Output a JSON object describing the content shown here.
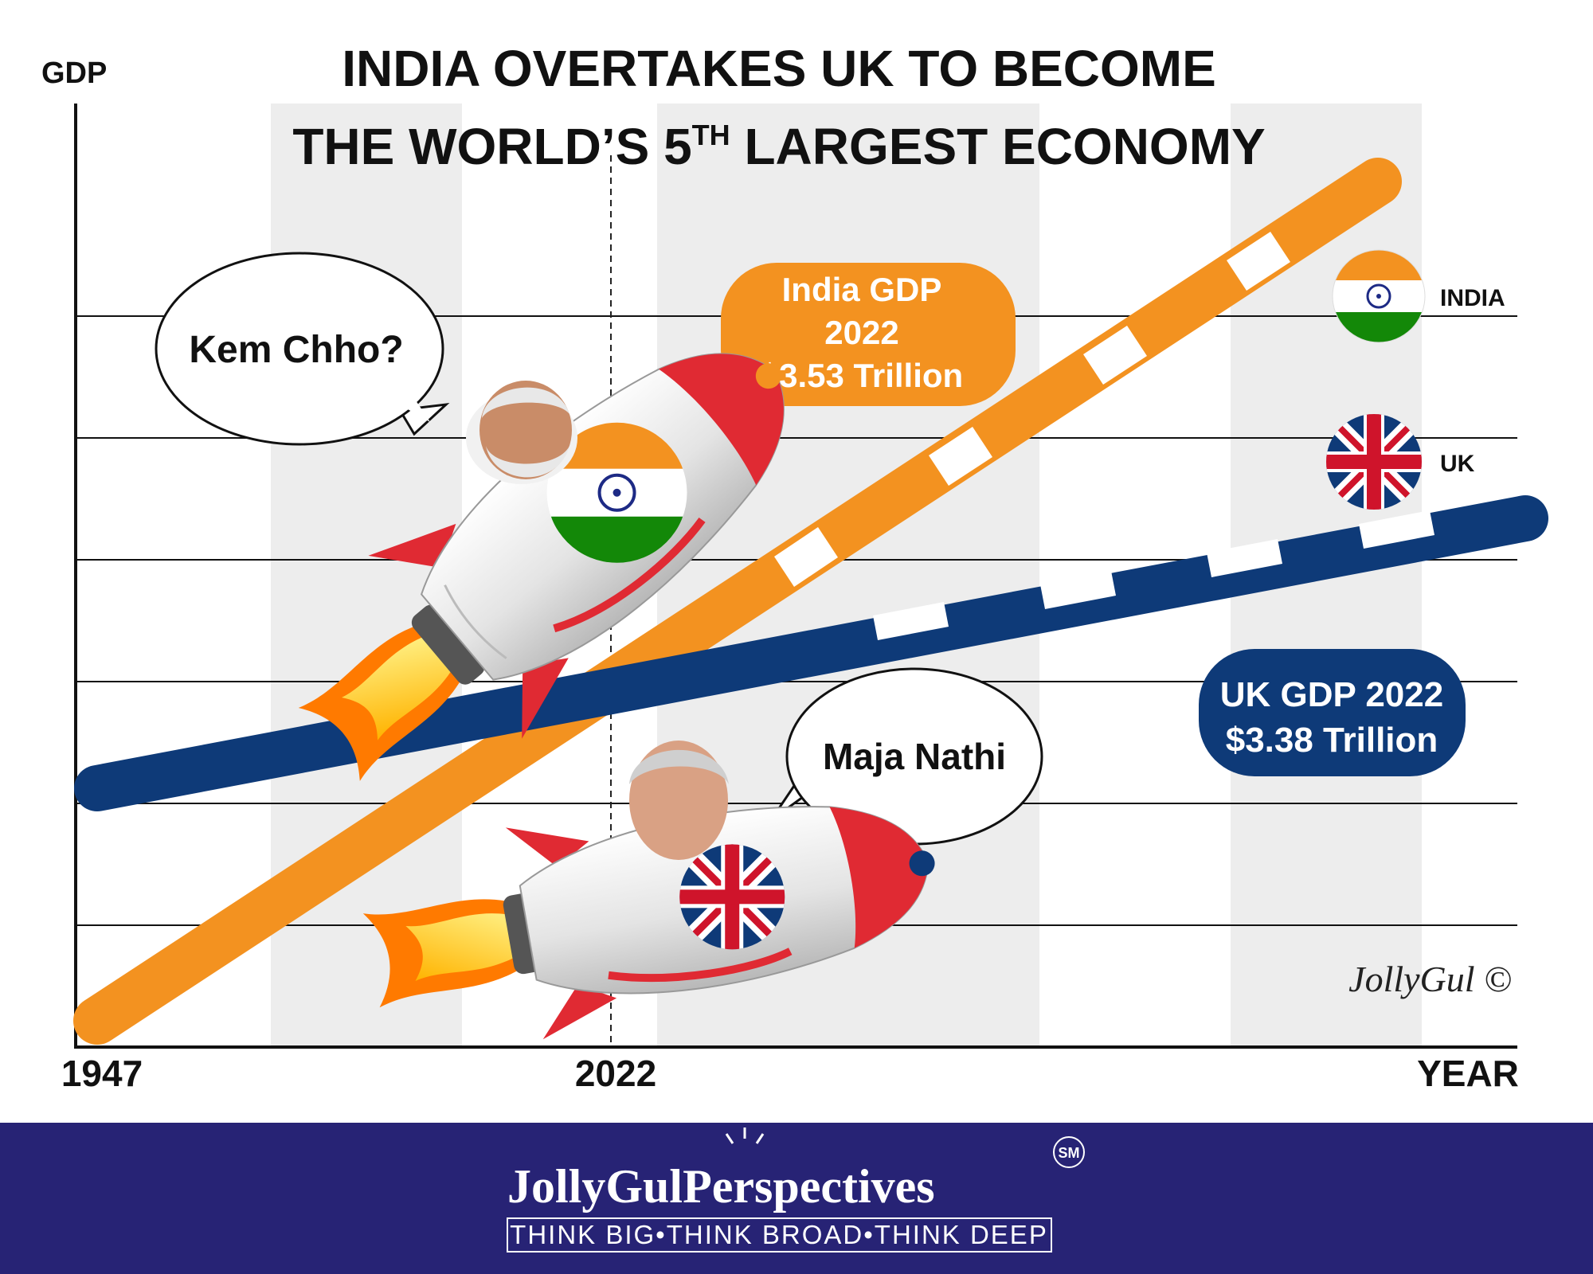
{
  "title": {
    "line1": "INDIA OVERTAKES UK TO BECOME",
    "line2_pre": "THE WORLD’S 5",
    "line2_sup": "TH",
    "line2_post": " LARGEST  ECONOMY"
  },
  "axes": {
    "y_label": "GDP",
    "x_label": "YEAR",
    "x_tick_start": "1947",
    "x_tick_mid": "2022"
  },
  "india_box": {
    "line1": "India GDP",
    "line2": "2022",
    "line3": "$3.53 Trillion"
  },
  "uk_box": {
    "line1": "UK GDP 2022",
    "line2": "$3.38 Trillion"
  },
  "legend": {
    "india": "INDIA",
    "uk": "UK"
  },
  "bubbles": {
    "india": "Kem Chho?",
    "uk": "Maja Nathi"
  },
  "signature": "JollyGul ©",
  "footer": {
    "brand_pre": "JollyGul",
    "brand_p": "P",
    "brand_post": "erspectives",
    "service_mark": "SM",
    "tagline": "THINK BIG•THINK BROAD•THINK DEEP"
  },
  "colors": {
    "india_orange": "#F39220",
    "india_green": "#138808",
    "uk_navy": "#0E3A78",
    "uk_red": "#CF142B",
    "footer_bg": "#272375",
    "band_gray": "#EDEDED",
    "rocket_red": "#E02A33"
  },
  "icons": [
    "india-flag-icon",
    "uk-flag-icon",
    "ashoka-chakra-icon",
    "rocket-icon",
    "flame-icon",
    "lightbulb-icon"
  ]
}
